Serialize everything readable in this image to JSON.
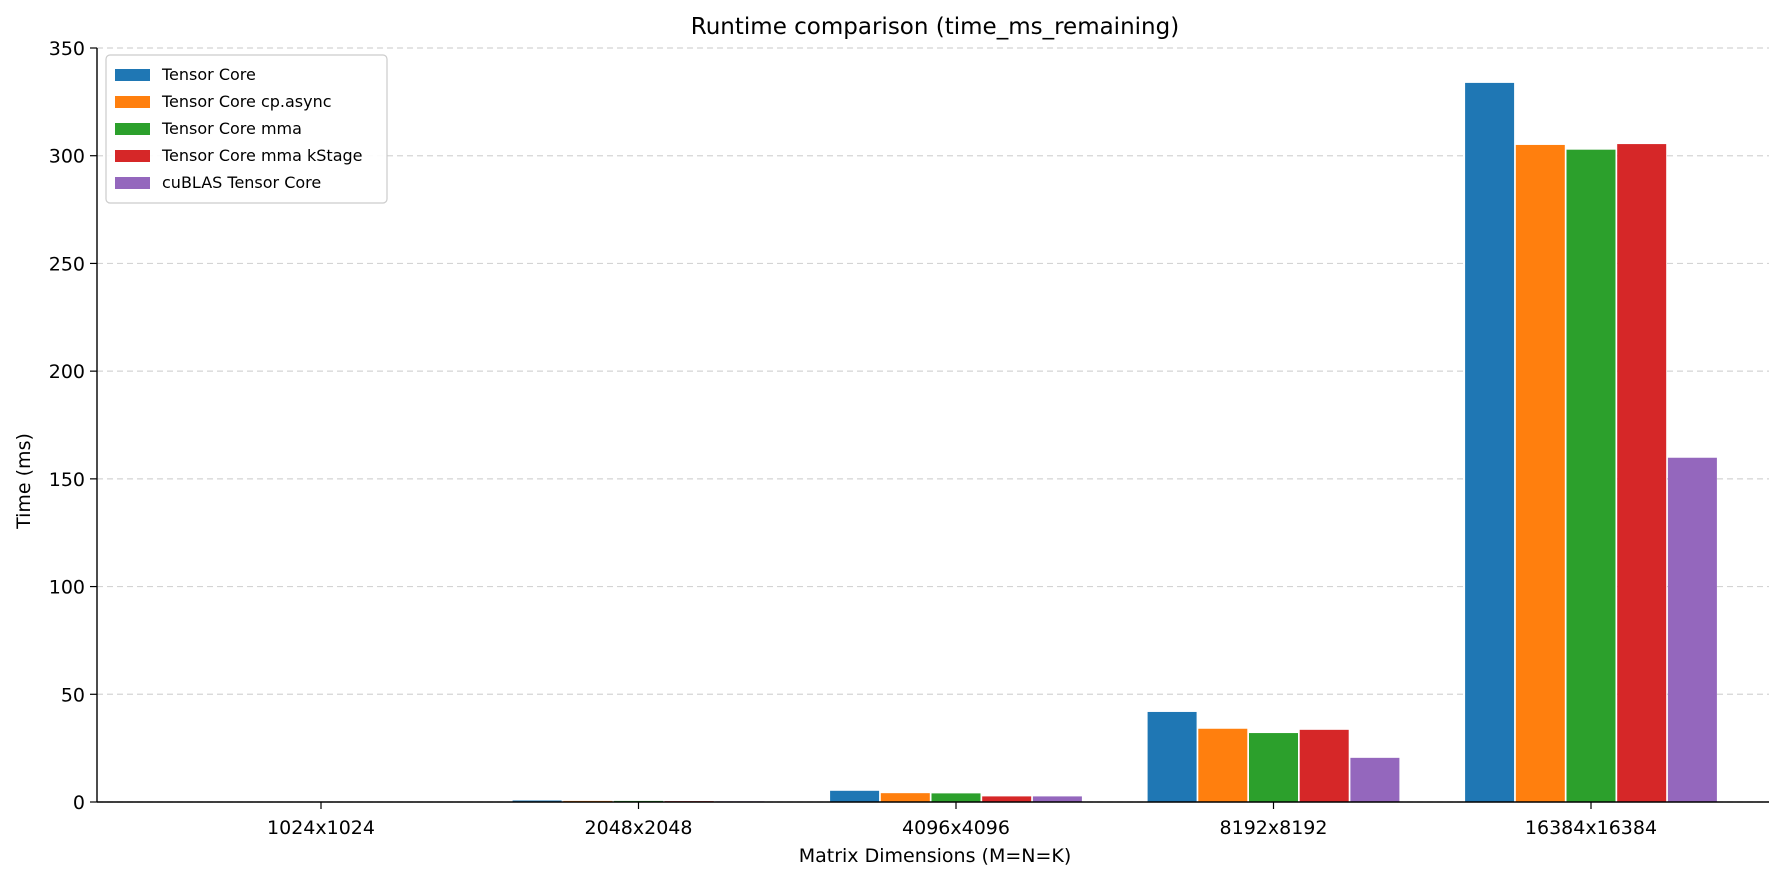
{
  "chart_data": {
    "type": "bar",
    "title": "Runtime comparison (time_ms_remaining)",
    "xlabel": "Matrix Dimensions (M=N=K)",
    "ylabel": "Time (ms)",
    "categories": [
      "1024x1024",
      "2048x2048",
      "4096x4096",
      "8192x8192",
      "16384x16384"
    ],
    "ylim": [
      0,
      350
    ],
    "yticks": [
      0,
      50,
      100,
      150,
      200,
      250,
      300,
      350
    ],
    "grid": "y-dashed",
    "legend_position": "top-left",
    "series": [
      {
        "name": "Tensor Core",
        "color": "#1f77b4",
        "values": [
          0.1,
          0.7,
          5.2,
          41.8,
          333.8
        ]
      },
      {
        "name": "Tensor Core cp.async",
        "color": "#ff7f0e",
        "values": [
          0.1,
          0.5,
          4.1,
          34.0,
          305.0
        ]
      },
      {
        "name": "Tensor Core mma",
        "color": "#2ca02c",
        "values": [
          0.1,
          0.5,
          4.0,
          32.0,
          302.8
        ]
      },
      {
        "name": "Tensor Core mma kStage",
        "color": "#d62728",
        "values": [
          0.1,
          0.4,
          2.6,
          33.5,
          305.4
        ]
      },
      {
        "name": "cuBLAS Tensor Core",
        "color": "#9467bd",
        "values": [
          0.1,
          0.3,
          2.6,
          20.5,
          159.8
        ]
      }
    ]
  }
}
